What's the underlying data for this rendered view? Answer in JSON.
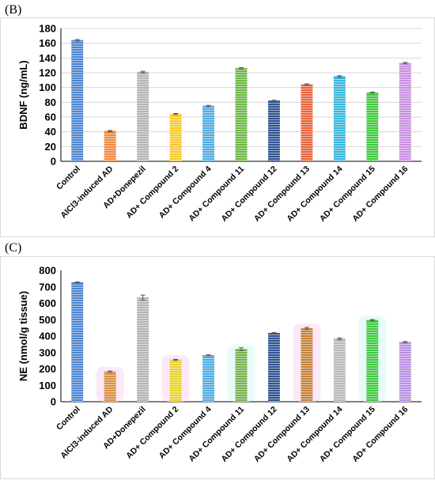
{
  "panels": [
    {
      "label": "(B)",
      "chart_data": {
        "type": "bar",
        "title": "",
        "xlabel": "",
        "ylabel": "BDNF (ng/mL)",
        "ylim": [
          0,
          180
        ],
        "ytick_step": 20,
        "grid": true,
        "categories": [
          "Control",
          "AlCl3-induced AD",
          "AD+Donepezil",
          "AD+ Compound 2",
          "AD+ Compound 4",
          "AD+ Compound 11",
          "AD+ Compound 12",
          "AD+ Compound 13",
          "AD+ Compound 14",
          "AD+ Compound 15",
          "AD+ Compound 16"
        ],
        "values": [
          164,
          41,
          121,
          64,
          75,
          126,
          82,
          104,
          115,
          93,
          133
        ],
        "errors": [
          1,
          0.8,
          1,
          0.8,
          0.8,
          1,
          0.8,
          1,
          1,
          0.8,
          1
        ],
        "colors": [
          "#4e86d0",
          "#f08a3c",
          "#b4b4b4",
          "#f7c92d",
          "#51ace0",
          "#6cb746",
          "#2e5590",
          "#e9643a",
          "#38b6da",
          "#40c840",
          "#c890e0"
        ]
      }
    },
    {
      "label": "(C)",
      "chart_data": {
        "type": "bar",
        "title": "",
        "xlabel": "",
        "ylabel": "NE (nmol/g tissue)",
        "ylim": [
          0,
          800
        ],
        "ytick_step": 100,
        "grid": false,
        "categories": [
          "Control",
          "AlCl3-induced AD",
          "AD+Donepezil",
          "AD+ Compound 2",
          "AD+ Compound 4",
          "AD+ Compound 11",
          "AD+ Compound 12",
          "AD+ Compound 13",
          "AD+ Compound 14",
          "AD+ Compound 15",
          "AD+ Compound 16"
        ],
        "values": [
          727,
          183,
          635,
          255,
          283,
          320,
          418,
          447,
          384,
          497,
          363
        ],
        "errors": [
          3,
          4,
          15,
          3,
          3,
          9,
          4,
          6,
          5,
          4,
          4
        ],
        "colors": [
          "#4e86d0",
          "#d99040",
          "#b4b4b4",
          "#e6d22e",
          "#51ace0",
          "#76b24e",
          "#2e5590",
          "#c4823a",
          "#b8b8b8",
          "#40c840",
          "#b890e0"
        ],
        "glow_colors": [
          "none",
          "#fbd8f4",
          "none",
          "#fbd8f4",
          "none",
          "#d8f8f4",
          "none",
          "#fbd8f4",
          "none",
          "#d8f8f4",
          "none"
        ]
      }
    }
  ]
}
